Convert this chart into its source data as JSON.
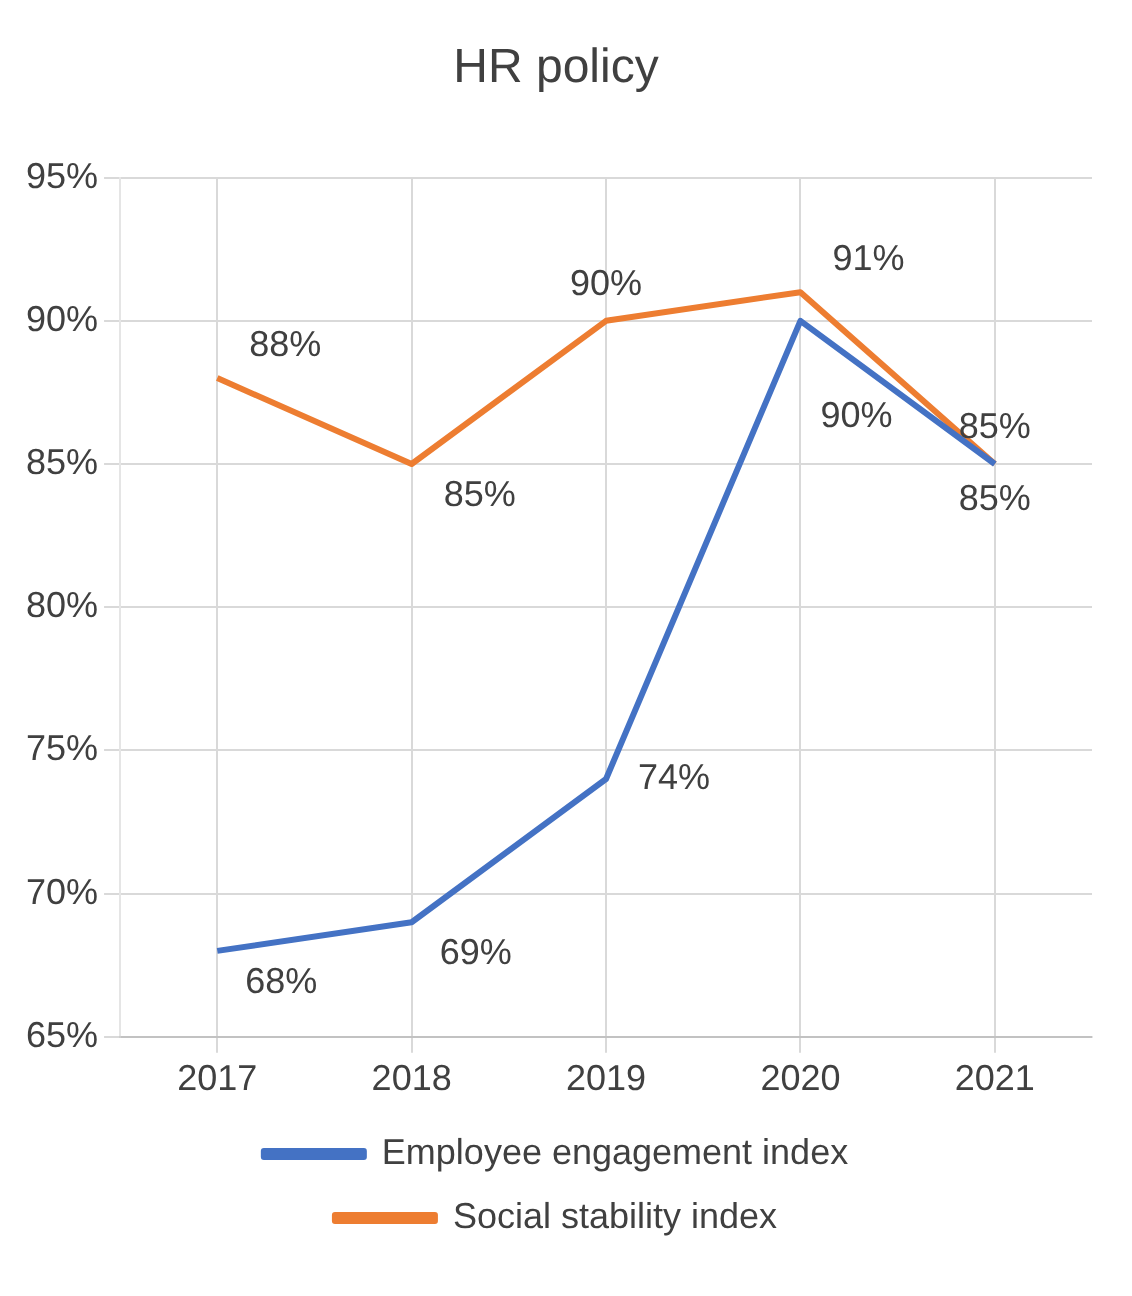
{
  "chart_data": {
    "type": "line",
    "title": "HR policy",
    "categories": [
      "2017",
      "2018",
      "2019",
      "2020",
      "2021"
    ],
    "series": [
      {
        "name": "Employee engagement index",
        "color": "#4472c4",
        "values": [
          68,
          69,
          74,
          90,
          85
        ],
        "value_labels": [
          "68%",
          "69%",
          "74%",
          "90%",
          "85%"
        ]
      },
      {
        "name": "Social stability index",
        "color": "#ed7d31",
        "values": [
          88,
          85,
          90,
          91,
          85
        ],
        "value_labels": [
          "88%",
          "85%",
          "90%",
          "91%",
          "85%"
        ]
      }
    ],
    "ylim": [
      65,
      95
    ],
    "yticks": [
      {
        "value": 65,
        "label": "65%"
      },
      {
        "value": 70,
        "label": "70%"
      },
      {
        "value": 75,
        "label": "75%"
      },
      {
        "value": 80,
        "label": "80%"
      },
      {
        "value": 85,
        "label": "85%"
      },
      {
        "value": 90,
        "label": "90%"
      },
      {
        "value": 95,
        "label": "95%"
      }
    ],
    "grid": true,
    "legend": "bottom",
    "marker": "none",
    "line_style": "solid"
  }
}
